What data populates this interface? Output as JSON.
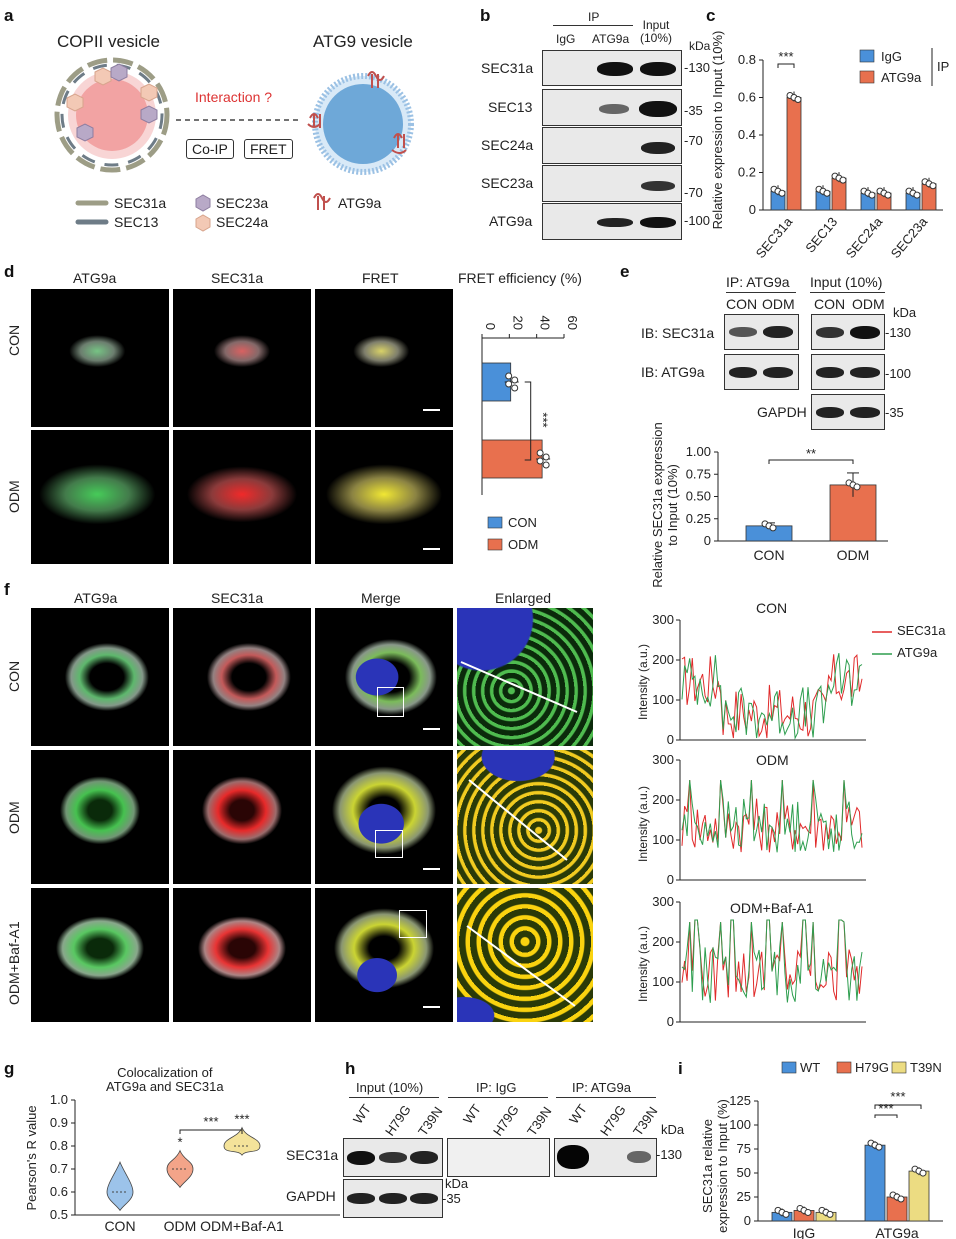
{
  "panels": {
    "a": "a",
    "b": "b",
    "c": "c",
    "d": "d",
    "e": "e",
    "f": "f",
    "g": "g",
    "h": "h",
    "i": "i"
  },
  "a": {
    "copii_title": "COPII vesicle",
    "atg9_title": "ATG9 vesicle",
    "interaction": "Interaction ?",
    "coip": "Co-IP",
    "fret": "FRET",
    "legend": {
      "sec31a": "SEC31a",
      "sec13": "SEC13",
      "sec23a": "SEC23a",
      "sec24a": "SEC24a",
      "atg9a": "ATG9a"
    },
    "colors": {
      "sec31a": "#9d9d86",
      "sec13": "#6e7c87",
      "sec23a": "#b8a9c7",
      "sec24a": "#f3c9b5",
      "atg9a": "#c0504d",
      "vesicle_pink": "#f2a3a3",
      "vesicle_blue": "#6ea8d8"
    }
  },
  "b": {
    "header_ip": "IP",
    "lanes": [
      "IgG",
      "ATG9a",
      "Input\n(10%)"
    ],
    "kda": "kDa",
    "rows": [
      {
        "label": "SEC31a",
        "marker": "-130"
      },
      {
        "label": "SEC13",
        "marker": "-35"
      },
      {
        "label": "SEC24a",
        "marker": "-70"
      },
      {
        "label": "SEC23a",
        "marker": "-70"
      },
      {
        "label": "ATG9a",
        "marker": "-100"
      }
    ]
  },
  "c": {
    "ylabel": "Relative expression to Input (10%)",
    "ip_label": "IP",
    "sig": "***",
    "chart_data": {
      "type": "bar",
      "categories": [
        "SEC31a",
        "SEC13",
        "SEC24a",
        "SEC23a"
      ],
      "series": [
        {
          "name": "IgG",
          "values": [
            0.1,
            0.1,
            0.09,
            0.09
          ],
          "color": "#4a90d9"
        },
        {
          "name": "ATG9a",
          "values": [
            0.6,
            0.17,
            0.09,
            0.14
          ],
          "color": "#e8704e"
        }
      ],
      "ylim": [
        0,
        0.8
      ],
      "yticks": [
        0,
        0.2,
        0.4,
        0.6,
        0.8
      ]
    }
  },
  "d": {
    "col_titles": [
      "ATG9a",
      "SEC31a",
      "FRET"
    ],
    "col_colors": [
      "#2e9e4f",
      "#e02a2a",
      "#222222"
    ],
    "rows": [
      "CON",
      "ODM"
    ],
    "chart_title": "FRET efficiency (%)",
    "sig": "***",
    "chart_data": {
      "type": "bar",
      "categories": [
        "CON",
        "ODM"
      ],
      "values": [
        21,
        44
      ],
      "xlim": [
        0,
        60
      ],
      "ticks": [
        0,
        20,
        40,
        60
      ],
      "colors": [
        "#4a90d9",
        "#e8704e"
      ]
    },
    "legend": [
      "CON",
      "ODM"
    ]
  },
  "e": {
    "ip_label": "IP: ATG9a",
    "input_label": "Input (10%)",
    "lanes": [
      "CON",
      "ODM",
      "CON",
      "ODM"
    ],
    "kda": "kDa",
    "rows": [
      {
        "label": "IB: SEC31a",
        "marker": "-130"
      },
      {
        "label": "IB: ATG9a",
        "marker": "-100"
      },
      {
        "label": "GAPDH",
        "marker": "-35"
      }
    ],
    "ylabel": "Relative SEC31a expression\nto Input (10%)",
    "sig": "**",
    "chart_data": {
      "type": "bar",
      "categories": [
        "CON",
        "ODM"
      ],
      "values": [
        0.17,
        0.63
      ],
      "ylim": [
        0,
        1.0
      ],
      "yticks": [
        "0",
        "0.25",
        "0.50",
        "0.75",
        "1.00"
      ],
      "colors": [
        "#4a90d9",
        "#e8704e"
      ]
    }
  },
  "f": {
    "col_titles": [
      "ATG9a",
      "SEC31a",
      "Merge",
      "Enlarged"
    ],
    "col_colors": [
      "#2e9e4f",
      "#e02a2a",
      "#222222",
      "#222222"
    ],
    "rows": [
      "CON",
      "ODM",
      "ODM+Baf-A1"
    ],
    "profiles": [
      {
        "title": "CON",
        "ylabel": "Intensity (a.u.)",
        "yticks": [
          "0",
          "100",
          "200",
          "300"
        ]
      },
      {
        "title": "ODM",
        "ylabel": "Intensity (a.u.)",
        "yticks": [
          "0",
          "100",
          "200",
          "300"
        ]
      },
      {
        "title": "ODM+Baf-A1",
        "ylabel": "Intensity (a.u.)",
        "yticks": [
          "0",
          "100",
          "200",
          "300"
        ]
      }
    ],
    "legend": [
      {
        "name": "SEC31a",
        "color": "#e02a2a"
      },
      {
        "name": "ATG9a",
        "color": "#2e9e4f"
      }
    ]
  },
  "g": {
    "title": "Colocalization of\nATG9a and SEC31a",
    "ylabel": "Pearson's R value",
    "sig_top": "***",
    "chart_data": {
      "type": "violin",
      "categories": [
        "CON",
        "ODM",
        "ODM+Baf-A1"
      ],
      "medians": [
        0.6,
        0.7,
        0.8
      ],
      "ylim": [
        0.5,
        1.0
      ],
      "yticks": [
        "0.5",
        "0.6",
        "0.7",
        "0.8",
        "0.9",
        "1.0"
      ],
      "marks": [
        "",
        "*",
        "***"
      ],
      "colors": [
        "#9cc3ea",
        "#f3a489",
        "#f4e39a"
      ]
    }
  },
  "h": {
    "groups": [
      "Input (10%)",
      "IP: IgG",
      "IP: ATG9a"
    ],
    "lanes": [
      "WT",
      "H79G",
      "T39N"
    ],
    "kda": "kDa",
    "rows": [
      {
        "label": "SEC31a",
        "marker": "-130"
      },
      {
        "label": "GAPDH",
        "marker": "-35"
      }
    ]
  },
  "i": {
    "ylabel": "SEC31a relative\nexpression to Input (%)",
    "sig": [
      "***",
      "***"
    ],
    "chart_data": {
      "type": "bar",
      "categories": [
        "IgG",
        "ATG9a"
      ],
      "series": [
        {
          "name": "WT",
          "values": [
            9,
            79
          ],
          "color": "#4a90d9"
        },
        {
          "name": "H79G",
          "values": [
            11,
            25
          ],
          "color": "#e8704e"
        },
        {
          "name": "T39N",
          "values": [
            9,
            52
          ],
          "color": "#ecdc82"
        }
      ],
      "ylim": [
        0,
        125
      ],
      "yticks": [
        "0",
        "25",
        "50",
        "75",
        "100",
        "125"
      ]
    }
  }
}
